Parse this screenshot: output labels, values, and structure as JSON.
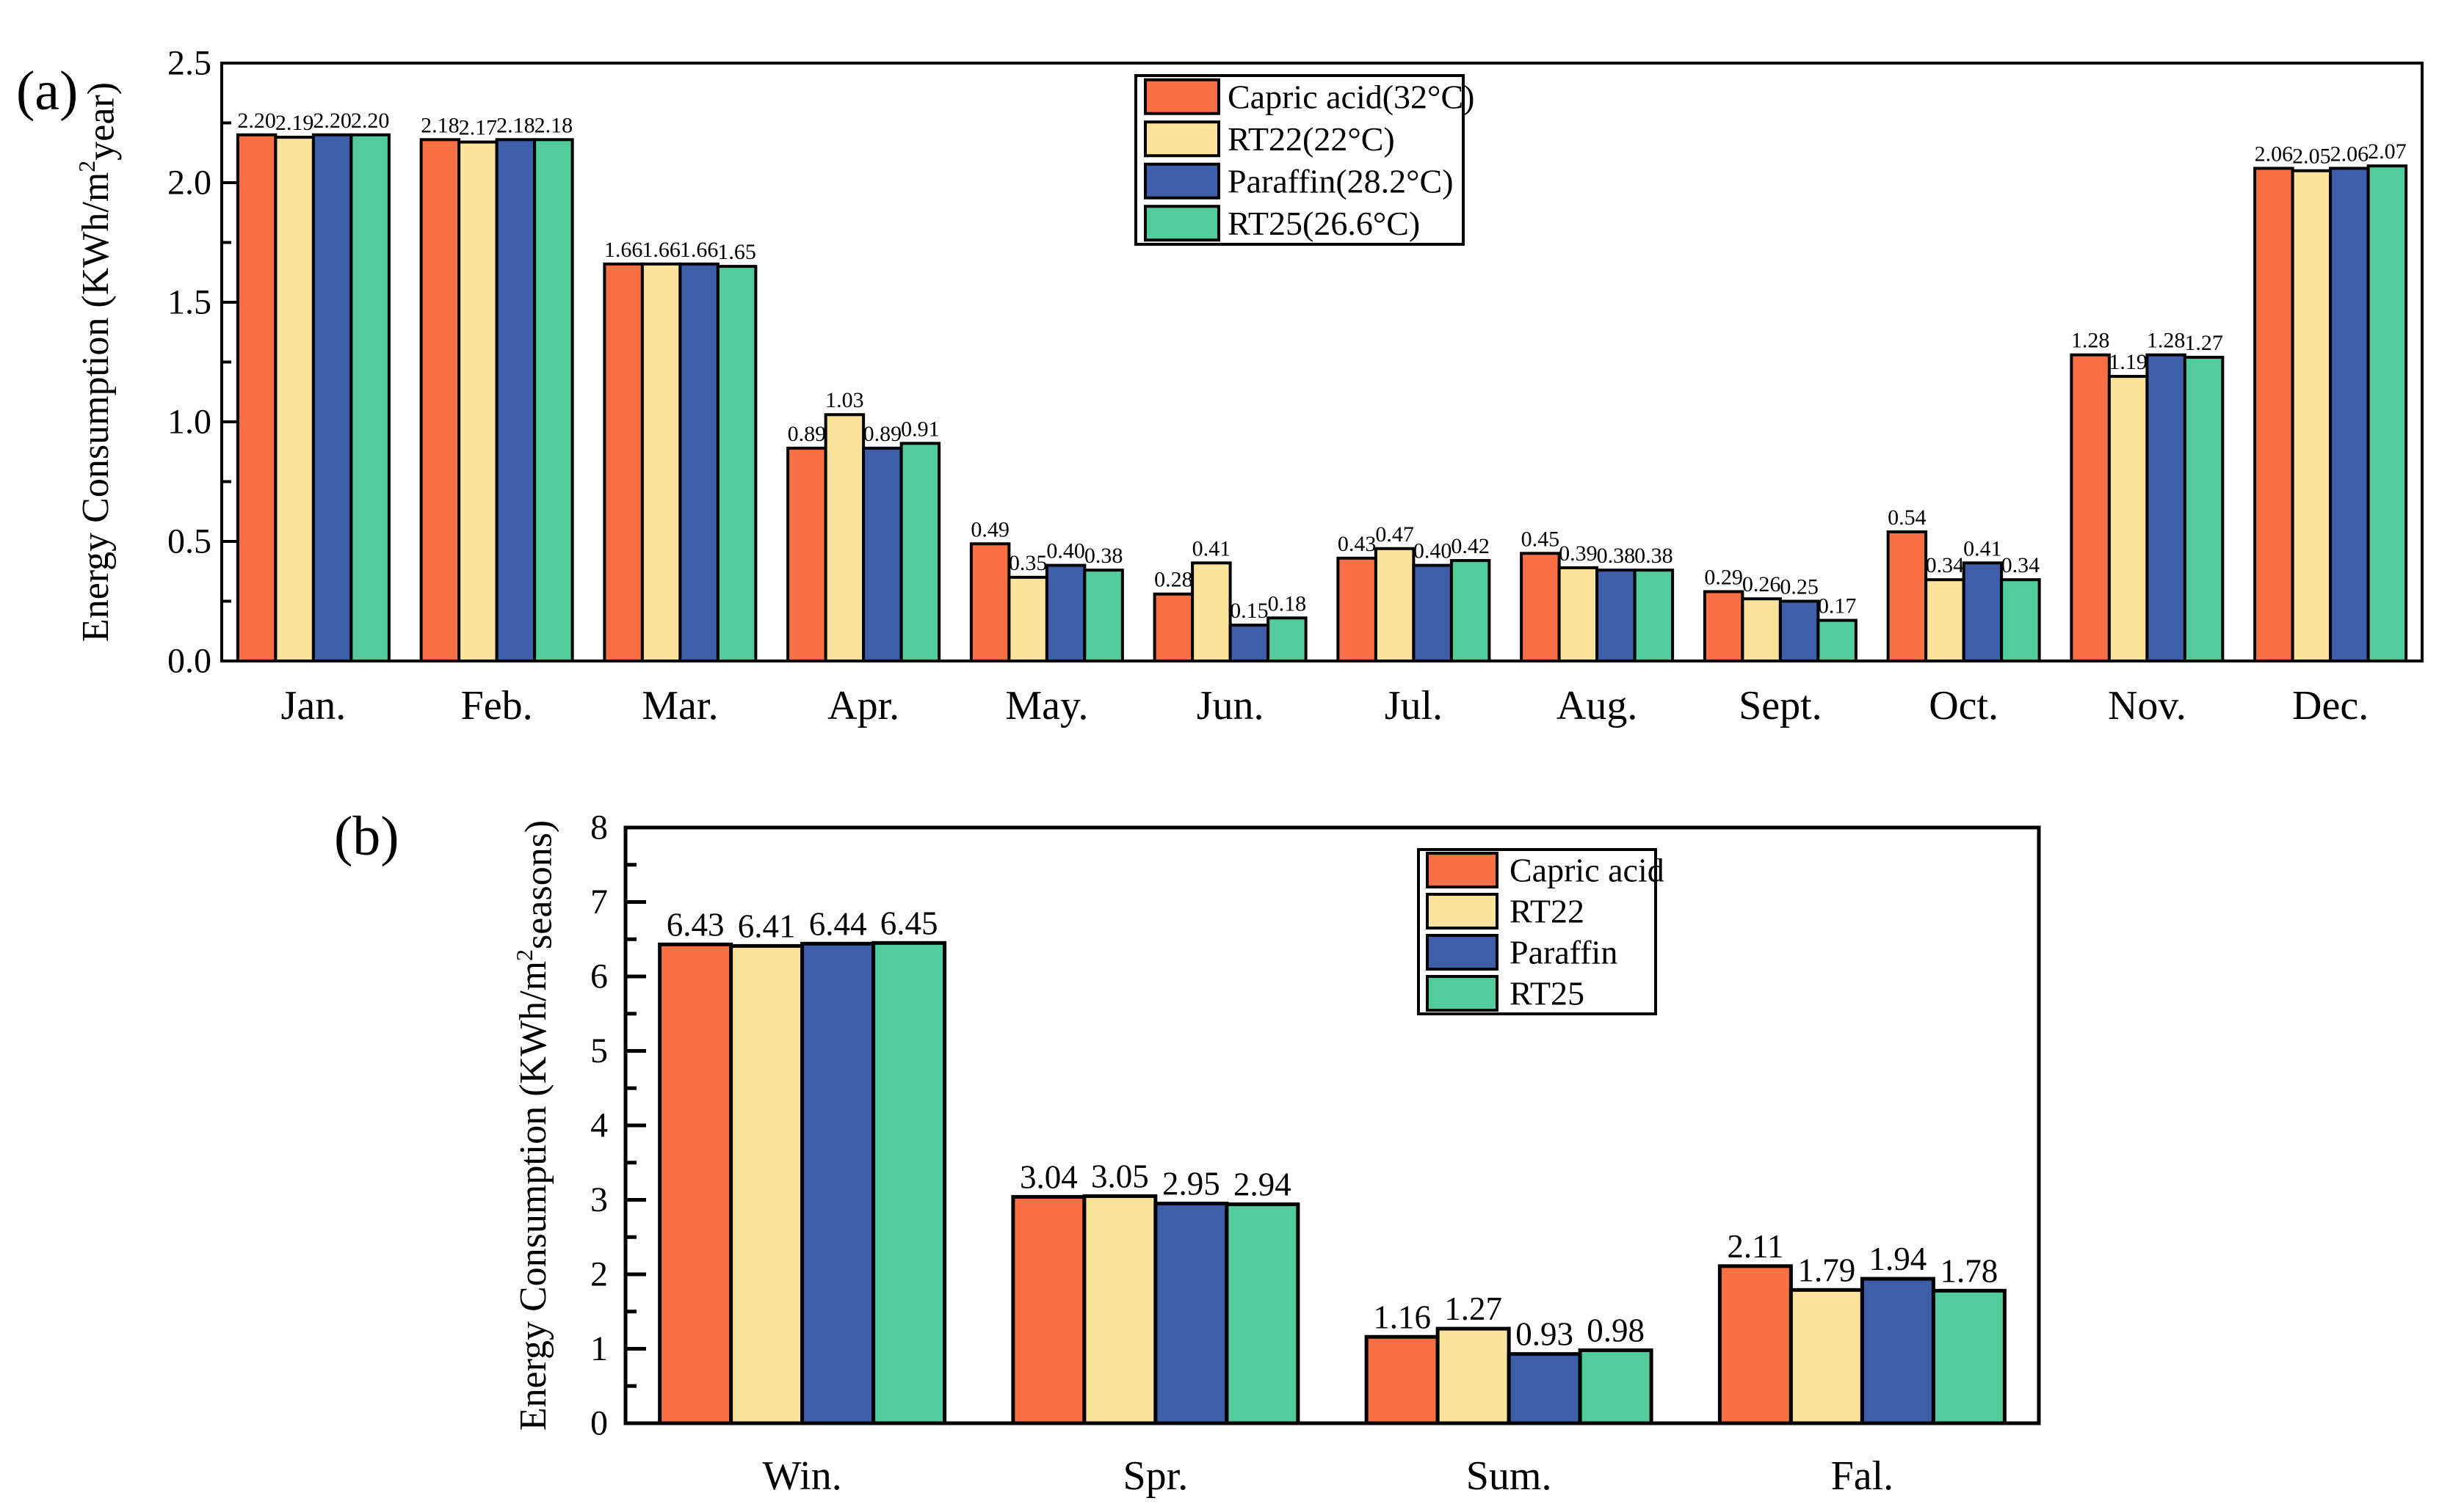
{
  "panels": {
    "a": {
      "label": "(a)"
    },
    "b": {
      "label": "(b)"
    }
  },
  "chart_data": [
    {
      "id": "a",
      "type": "bar",
      "title": "",
      "xlabel": "",
      "ylabel": "Energy Consumption (KWh/m²year)",
      "categories": [
        "Jan.",
        "Feb.",
        "Mar.",
        "Apr.",
        "May.",
        "Jun.",
        "Jul.",
        "Aug.",
        "Sept.",
        "Oct.",
        "Nov.",
        "Dec."
      ],
      "series": [
        {
          "name": "Capric acid(32°C)",
          "color": "#FB6F45",
          "values": [
            2.2,
            2.18,
            1.66,
            0.89,
            0.49,
            0.28,
            0.43,
            0.45,
            0.29,
            0.54,
            1.28,
            2.06
          ]
        },
        {
          "name": "RT22(22°C)",
          "color": "#FBE39B",
          "values": [
            2.19,
            2.17,
            1.66,
            1.03,
            0.35,
            0.41,
            0.47,
            0.39,
            0.26,
            0.34,
            1.19,
            2.05
          ]
        },
        {
          "name": "Paraffin(28.2°C)",
          "color": "#3F5EAA",
          "values": [
            2.2,
            2.18,
            1.66,
            0.89,
            0.4,
            0.15,
            0.4,
            0.38,
            0.25,
            0.41,
            1.28,
            2.06
          ]
        },
        {
          "name": "RT25(26.6°C)",
          "color": "#53CC9C",
          "values": [
            2.2,
            2.18,
            1.65,
            0.91,
            0.38,
            0.18,
            0.42,
            0.38,
            0.17,
            0.34,
            1.27,
            2.07
          ]
        }
      ],
      "ylim": [
        0,
        2.5
      ],
      "ytick_step": 0.5,
      "yminor_step": 0.25,
      "ytick_labels": [
        "0.0",
        "0.5",
        "1.0",
        "1.5",
        "2.0",
        "2.5"
      ],
      "value_label_decimals": 2,
      "grid": false,
      "legend_position": "top-center-inside",
      "bar_outline_color": "#000000",
      "axis_color": "#000000"
    },
    {
      "id": "b",
      "type": "bar",
      "title": "",
      "xlabel": "",
      "ylabel": "Energy Consumption (KWh/m²seasons)",
      "categories": [
        "Win.",
        "Spr.",
        "Sum.",
        "Fal."
      ],
      "series": [
        {
          "name": "Capric acid",
          "color": "#FB6F45",
          "values": [
            6.43,
            3.04,
            1.16,
            2.11
          ]
        },
        {
          "name": "RT22",
          "color": "#FBE39B",
          "values": [
            6.41,
            3.05,
            1.27,
            1.79
          ]
        },
        {
          "name": "Paraffin",
          "color": "#3F5EAA",
          "values": [
            6.44,
            2.95,
            0.93,
            1.94
          ]
        },
        {
          "name": "RT25",
          "color": "#53CC9C",
          "values": [
            6.45,
            2.94,
            0.98,
            1.78
          ]
        }
      ],
      "ylim": [
        0,
        8
      ],
      "ytick_step": 1,
      "yminor_step": 0.5,
      "ytick_labels": [
        "0",
        "1",
        "2",
        "3",
        "4",
        "5",
        "6",
        "7",
        "8"
      ],
      "value_label_decimals": 2,
      "grid": false,
      "legend_position": "top-right-inside",
      "bar_outline_color": "#000000",
      "axis_color": "#000000"
    }
  ]
}
